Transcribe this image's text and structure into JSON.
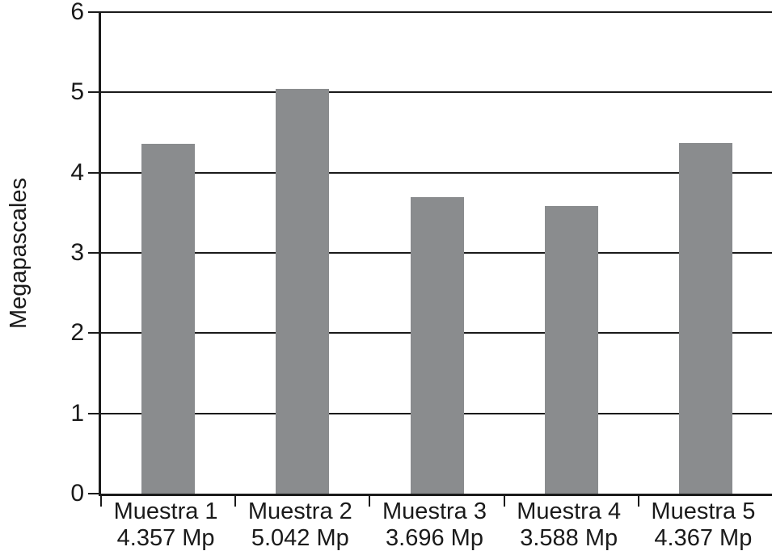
{
  "chart_data": {
    "type": "bar",
    "title": "",
    "xlabel": "",
    "ylabel": "Megapascales",
    "categories": [
      "Muestra 1",
      "Muestra 2",
      "Muestra 3",
      "Muestra 4",
      "Muestra 5"
    ],
    "category_sublabels": [
      "4.357 Mp",
      "5.042 Mp",
      "3.696 Mp",
      "3.588 Mp",
      "4.367 Mp"
    ],
    "values": [
      4.357,
      5.042,
      3.696,
      3.588,
      4.367
    ],
    "unit": "Mp",
    "ylim": [
      0,
      6
    ],
    "yticks": [
      0,
      1,
      2,
      3,
      4,
      5,
      6
    ],
    "grid": true,
    "legend": "none",
    "bar_color": "#8a8c8e",
    "axis_color": "#1a1a1a",
    "background": "#ffffff"
  }
}
